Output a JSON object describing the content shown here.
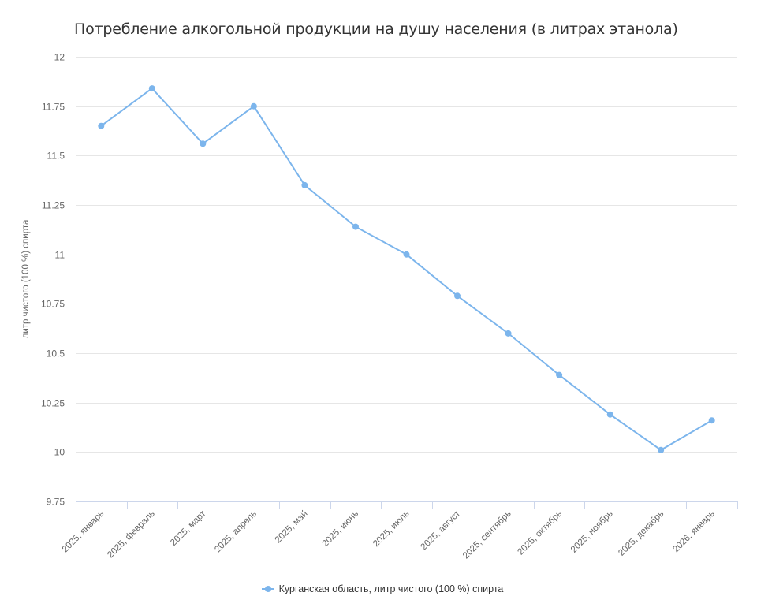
{
  "chart_data": {
    "type": "line",
    "title": "Потребление алкогольной продукции на душу населения (в литрах этанола)",
    "xlabel": "",
    "ylabel": "литр чистого (100 %) спирта",
    "ylim": [
      9.75,
      12
    ],
    "yticks": [
      "12",
      "11.75",
      "11.5",
      "11.25",
      "11",
      "10.75",
      "10.5",
      "10.25",
      "10",
      "9.75"
    ],
    "grid": true,
    "legend_position": "bottom",
    "categories": [
      "2025, январь",
      "2025, февраль",
      "2025, март",
      "2025, апрель",
      "2025, май",
      "2025, июнь",
      "2025, июль",
      "2025, август",
      "2025, сентябрь",
      "2025, октябрь",
      "2025, ноябрь",
      "2025, декабрь",
      "2026, январь"
    ],
    "series": [
      {
        "name": "Курганская область, литр чистого (100 %) спирта",
        "color": "#7cb5ec",
        "values": [
          11.65,
          11.84,
          11.56,
          11.75,
          11.35,
          11.14,
          11.0,
          10.79,
          10.6,
          10.39,
          10.19,
          10.01,
          10.16
        ]
      }
    ]
  },
  "colors": {
    "series": "#7cb5ec",
    "grid": "#e6e6e6",
    "axis": "#ccd6eb",
    "label": "#666666",
    "title": "#333333"
  }
}
